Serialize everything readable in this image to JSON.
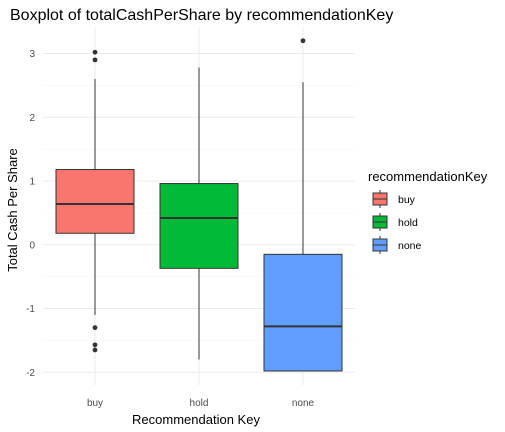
{
  "chart_data": {
    "type": "boxplot",
    "title": "Boxplot of totalCashPerShare by recommendationKey",
    "xlabel": "Recommendation Key",
    "ylabel": "Total Cash Per Share",
    "ylim": [
      -2.2,
      3.4
    ],
    "yticks": [
      -2,
      -1,
      0,
      1,
      2,
      3
    ],
    "ytick_labels": [
      "-2",
      "-1",
      "0",
      "1",
      "2",
      "3"
    ],
    "grid": true,
    "legend": {
      "title": "recommendationKey",
      "position": "right",
      "entries": [
        "buy",
        "hold",
        "none"
      ]
    },
    "categories": [
      "buy",
      "hold",
      "none"
    ],
    "boxes": [
      {
        "name": "buy",
        "color": "#F8766D",
        "whisker_low": -1.1,
        "q1": 0.18,
        "median": 0.64,
        "q3": 1.18,
        "whisker_high": 2.6,
        "outliers": [
          3.02,
          2.9,
          -1.3,
          -1.57,
          -1.65
        ]
      },
      {
        "name": "hold",
        "color": "#00BA38",
        "whisker_low": -1.8,
        "q1": -0.37,
        "median": 0.42,
        "q3": 0.96,
        "whisker_high": 2.78,
        "outliers": []
      },
      {
        "name": "none",
        "color": "#619CFF",
        "whisker_low": -1.98,
        "q1": -1.98,
        "median": -1.28,
        "q3": -0.15,
        "whisker_high": 2.55,
        "outliers": [
          3.2
        ]
      }
    ]
  }
}
